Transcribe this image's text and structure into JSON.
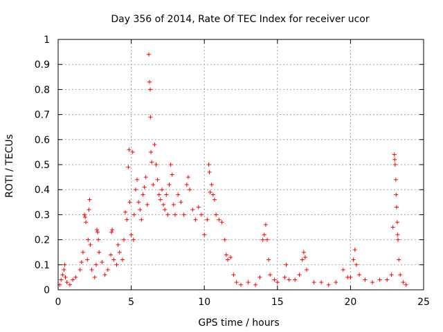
{
  "chart_data": {
    "type": "scatter",
    "title": "Day 356 of 2014, Rate Of TEC Index for receiver ucor",
    "xlabel": "GPS time / hours",
    "ylabel": "ROTI / TECUs",
    "xlim": [
      0,
      25
    ],
    "ylim": [
      0,
      1
    ],
    "x_ticks": [
      0,
      5,
      10,
      15,
      20,
      25
    ],
    "x_tick_labels": [
      "0",
      "5",
      "10",
      "15",
      "20",
      "25"
    ],
    "y_ticks": [
      0,
      0.1,
      0.2,
      0.3,
      0.4,
      0.5,
      0.6,
      0.7,
      0.8,
      0.9,
      1
    ],
    "y_tick_labels": [
      "0",
      "0.1",
      "0.2",
      "0.3",
      "0.4",
      "0.5",
      "0.6",
      "0.7",
      "0.8",
      "0.9",
      "1"
    ],
    "grid": true,
    "marker": "+",
    "color": "#ff0000",
    "series": [
      {
        "name": "ROTI",
        "points": [
          [
            0.1,
            0.02
          ],
          [
            0.2,
            0.04
          ],
          [
            0.3,
            0.06
          ],
          [
            0.4,
            0.08
          ],
          [
            0.45,
            0.1
          ],
          [
            0.5,
            0.05
          ],
          [
            0.6,
            0.03
          ],
          [
            0.8,
            0.02
          ],
          [
            1.0,
            0.04
          ],
          [
            1.2,
            0.05
          ],
          [
            1.5,
            0.08
          ],
          [
            1.6,
            0.11
          ],
          [
            1.7,
            0.15
          ],
          [
            1.8,
            0.3
          ],
          [
            1.85,
            0.29
          ],
          [
            1.9,
            0.27
          ],
          [
            2.0,
            0.12
          ],
          [
            2.05,
            0.2
          ],
          [
            2.1,
            0.32
          ],
          [
            2.15,
            0.36
          ],
          [
            2.2,
            0.18
          ],
          [
            2.3,
            0.08
          ],
          [
            2.5,
            0.05
          ],
          [
            2.6,
            0.1
          ],
          [
            2.65,
            0.24
          ],
          [
            2.7,
            0.23
          ],
          [
            2.75,
            0.2
          ],
          [
            2.8,
            0.15
          ],
          [
            3.0,
            0.11
          ],
          [
            3.2,
            0.06
          ],
          [
            3.4,
            0.08
          ],
          [
            3.6,
            0.14
          ],
          [
            3.65,
            0.23
          ],
          [
            3.7,
            0.24
          ],
          [
            3.8,
            0.12
          ],
          [
            4.0,
            0.1
          ],
          [
            4.1,
            0.18
          ],
          [
            4.2,
            0.15
          ],
          [
            4.4,
            0.12
          ],
          [
            4.5,
            0.2
          ],
          [
            4.6,
            0.31
          ],
          [
            4.7,
            0.28
          ],
          [
            4.8,
            0.49
          ],
          [
            4.85,
            0.56
          ],
          [
            4.9,
            0.35
          ],
          [
            5.0,
            0.22
          ],
          [
            5.1,
            0.55
          ],
          [
            5.15,
            0.2
          ],
          [
            5.2,
            0.3
          ],
          [
            5.3,
            0.4
          ],
          [
            5.4,
            0.44
          ],
          [
            5.5,
            0.35
          ],
          [
            5.6,
            0.32
          ],
          [
            5.7,
            0.28
          ],
          [
            5.8,
            0.38
          ],
          [
            5.9,
            0.41
          ],
          [
            6.0,
            0.45
          ],
          [
            6.1,
            0.34
          ],
          [
            6.2,
            0.94
          ],
          [
            6.25,
            0.83
          ],
          [
            6.3,
            0.8
          ],
          [
            6.32,
            0.69
          ],
          [
            6.35,
            0.55
          ],
          [
            6.4,
            0.51
          ],
          [
            6.5,
            0.42
          ],
          [
            6.6,
            0.58
          ],
          [
            6.7,
            0.5
          ],
          [
            6.8,
            0.44
          ],
          [
            6.9,
            0.38
          ],
          [
            7.0,
            0.36
          ],
          [
            7.1,
            0.4
          ],
          [
            7.2,
            0.34
          ],
          [
            7.3,
            0.32
          ],
          [
            7.4,
            0.38
          ],
          [
            7.5,
            0.3
          ],
          [
            7.6,
            0.42
          ],
          [
            7.7,
            0.5
          ],
          [
            7.8,
            0.46
          ],
          [
            7.9,
            0.34
          ],
          [
            8.0,
            0.3
          ],
          [
            8.2,
            0.38
          ],
          [
            8.4,
            0.35
          ],
          [
            8.6,
            0.3
          ],
          [
            8.8,
            0.42
          ],
          [
            8.9,
            0.45
          ],
          [
            9.0,
            0.4
          ],
          [
            9.2,
            0.32
          ],
          [
            9.4,
            0.28
          ],
          [
            9.6,
            0.33
          ],
          [
            9.8,
            0.3
          ],
          [
            10.0,
            0.22
          ],
          [
            10.2,
            0.28
          ],
          [
            10.3,
            0.5
          ],
          [
            10.35,
            0.47
          ],
          [
            10.4,
            0.39
          ],
          [
            10.5,
            0.42
          ],
          [
            10.6,
            0.38
          ],
          [
            10.7,
            0.36
          ],
          [
            10.8,
            0.3
          ],
          [
            11.0,
            0.28
          ],
          [
            11.2,
            0.27
          ],
          [
            11.4,
            0.2
          ],
          [
            11.5,
            0.14
          ],
          [
            11.6,
            0.12
          ],
          [
            11.8,
            0.13
          ],
          [
            12.0,
            0.06
          ],
          [
            12.2,
            0.03
          ],
          [
            12.5,
            0.02
          ],
          [
            13.0,
            0.03
          ],
          [
            13.5,
            0.02
          ],
          [
            13.8,
            0.05
          ],
          [
            14.0,
            0.2
          ],
          [
            14.1,
            0.22
          ],
          [
            14.2,
            0.26
          ],
          [
            14.3,
            0.2
          ],
          [
            14.4,
            0.12
          ],
          [
            14.5,
            0.06
          ],
          [
            14.8,
            0.04
          ],
          [
            15.0,
            0.03
          ],
          [
            15.5,
            0.05
          ],
          [
            15.6,
            0.1
          ],
          [
            15.8,
            0.04
          ],
          [
            16.2,
            0.04
          ],
          [
            16.5,
            0.06
          ],
          [
            16.7,
            0.12
          ],
          [
            16.8,
            0.15
          ],
          [
            16.9,
            0.13
          ],
          [
            17.0,
            0.08
          ],
          [
            17.5,
            0.03
          ],
          [
            18.0,
            0.03
          ],
          [
            18.5,
            0.02
          ],
          [
            19.0,
            0.03
          ],
          [
            19.5,
            0.08
          ],
          [
            19.8,
            0.05
          ],
          [
            20.0,
            0.05
          ],
          [
            20.2,
            0.12
          ],
          [
            20.3,
            0.16
          ],
          [
            20.4,
            0.1
          ],
          [
            20.6,
            0.06
          ],
          [
            21.0,
            0.04
          ],
          [
            21.5,
            0.03
          ],
          [
            22.0,
            0.04
          ],
          [
            22.5,
            0.04
          ],
          [
            22.8,
            0.06
          ],
          [
            22.9,
            0.25
          ],
          [
            23.0,
            0.54
          ],
          [
            23.02,
            0.52
          ],
          [
            23.05,
            0.5
          ],
          [
            23.1,
            0.44
          ],
          [
            23.12,
            0.38
          ],
          [
            23.15,
            0.33
          ],
          [
            23.2,
            0.27
          ],
          [
            23.22,
            0.22
          ],
          [
            23.25,
            0.2
          ],
          [
            23.3,
            0.12
          ],
          [
            23.4,
            0.06
          ],
          [
            23.6,
            0.03
          ],
          [
            23.8,
            0.02
          ]
        ]
      }
    ]
  }
}
